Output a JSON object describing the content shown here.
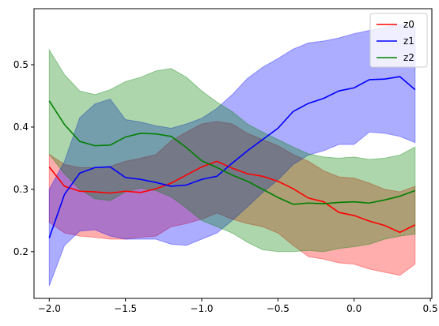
{
  "chart_data": {
    "type": "line",
    "title": "",
    "xlabel": "",
    "ylabel": "",
    "xlim": [
      -2.08,
      2.0
    ],
    "ylim": [
      0.125,
      0.59
    ],
    "xticks": [
      -2.0,
      -1.5,
      -1.0,
      -0.5,
      0.0,
      0.5
    ],
    "xtick_labels": [
      "−2.0",
      "−1.5",
      "−1.0",
      "−0.5",
      "0.0",
      "0.5"
    ],
    "yticks": [
      0.2,
      0.3,
      0.4,
      0.5
    ],
    "ytick_labels": [
      "0.2",
      "0.3",
      "0.4",
      "0.5"
    ],
    "grid": false,
    "legend": "top-right",
    "x": [
      -2.0,
      -1.9,
      -1.8,
      -1.7,
      -1.6,
      -1.5,
      -1.4,
      -1.3,
      -1.2,
      -1.1,
      -1.0,
      -0.9,
      -0.8,
      -0.7,
      -0.6,
      -0.5,
      -0.4,
      -0.3,
      -0.2,
      -0.1,
      0.0,
      0.1,
      0.2,
      0.3,
      0.4
    ],
    "series": [
      {
        "name": "z0",
        "color": "#ff0000",
        "values": [
          0.336,
          0.305,
          0.297,
          0.296,
          0.294,
          0.297,
          0.295,
          0.301,
          0.31,
          0.323,
          0.336,
          0.345,
          0.334,
          0.325,
          0.321,
          0.313,
          0.301,
          0.286,
          0.28,
          0.263,
          0.258,
          0.249,
          0.242,
          0.231,
          0.243
        ],
        "lower": [
          0.247,
          0.23,
          0.225,
          0.223,
          0.22,
          0.22,
          0.223,
          0.225,
          0.24,
          0.245,
          0.252,
          0.262,
          0.252,
          0.245,
          0.24,
          0.23,
          0.21,
          0.192,
          0.188,
          0.182,
          0.18,
          0.172,
          0.167,
          0.162,
          0.18
        ],
        "upper": [
          0.356,
          0.34,
          0.335,
          0.335,
          0.337,
          0.345,
          0.35,
          0.356,
          0.378,
          0.392,
          0.405,
          0.409,
          0.405,
          0.39,
          0.38,
          0.37,
          0.356,
          0.345,
          0.33,
          0.32,
          0.318,
          0.31,
          0.3,
          0.296,
          0.305
        ]
      },
      {
        "name": "z1",
        "color": "#0000ff",
        "values": [
          0.222,
          0.292,
          0.326,
          0.335,
          0.336,
          0.319,
          0.316,
          0.311,
          0.305,
          0.307,
          0.316,
          0.321,
          0.342,
          0.362,
          0.38,
          0.398,
          0.425,
          0.438,
          0.446,
          0.458,
          0.463,
          0.476,
          0.477,
          0.481,
          0.46
        ],
        "lower": [
          0.145,
          0.21,
          0.233,
          0.235,
          0.225,
          0.22,
          0.22,
          0.22,
          0.212,
          0.21,
          0.22,
          0.23,
          0.25,
          0.272,
          0.295,
          0.315,
          0.34,
          0.355,
          0.362,
          0.372,
          0.372,
          0.392,
          0.39,
          0.385,
          0.375
        ],
        "upper": [
          0.3,
          0.345,
          0.415,
          0.437,
          0.445,
          0.412,
          0.408,
          0.402,
          0.398,
          0.405,
          0.414,
          0.43,
          0.452,
          0.478,
          0.496,
          0.51,
          0.525,
          0.535,
          0.538,
          0.543,
          0.55,
          0.555,
          0.56,
          0.565,
          0.56
        ]
      },
      {
        "name": "z2",
        "color": "#008000",
        "values": [
          0.442,
          0.404,
          0.377,
          0.37,
          0.371,
          0.384,
          0.39,
          0.389,
          0.385,
          0.367,
          0.346,
          0.335,
          0.323,
          0.313,
          0.3,
          0.287,
          0.276,
          0.278,
          0.277,
          0.279,
          0.28,
          0.278,
          0.283,
          0.289,
          0.298
        ],
        "lower": [
          0.356,
          0.325,
          0.3,
          0.285,
          0.282,
          0.296,
          0.302,
          0.298,
          0.288,
          0.27,
          0.25,
          0.24,
          0.23,
          0.215,
          0.203,
          0.2,
          0.2,
          0.202,
          0.2,
          0.205,
          0.208,
          0.212,
          0.22,
          0.225,
          0.228
        ],
        "upper": [
          0.524,
          0.484,
          0.458,
          0.452,
          0.46,
          0.473,
          0.48,
          0.49,
          0.494,
          0.48,
          0.458,
          0.44,
          0.425,
          0.405,
          0.392,
          0.38,
          0.368,
          0.357,
          0.352,
          0.35,
          0.352,
          0.348,
          0.35,
          0.355,
          0.368
        ]
      }
    ]
  }
}
